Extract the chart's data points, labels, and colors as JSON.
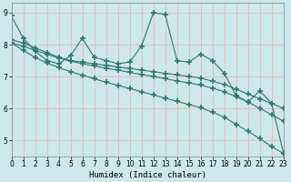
{
  "title": "",
  "xlabel": "Humidex (Indice chaleur)",
  "bg_color": "#cce8e8",
  "line_color": "#2d7a6b",
  "grid_color": "#e8b8b8",
  "x_data": [
    0,
    1,
    2,
    3,
    4,
    5,
    6,
    7,
    8,
    9,
    10,
    11,
    12,
    13,
    14,
    15,
    16,
    17,
    18,
    19,
    20,
    21,
    22,
    23
  ],
  "line1_y": [
    8.9,
    8.2,
    7.8,
    7.5,
    7.4,
    7.65,
    8.2,
    7.6,
    7.5,
    7.4,
    7.45,
    7.95,
    9.0,
    8.95,
    7.5,
    7.45,
    7.7,
    7.5,
    7.1,
    6.4,
    6.2,
    6.55,
    6.15,
    4.6
  ],
  "line2_y": [
    8.15,
    8.05,
    7.9,
    7.75,
    7.6,
    7.5,
    7.45,
    7.4,
    7.35,
    7.3,
    7.25,
    7.2,
    7.15,
    7.1,
    7.05,
    7.0,
    6.95,
    6.85,
    6.75,
    6.6,
    6.45,
    6.3,
    6.15,
    6.0
  ],
  "line3_y": [
    8.05,
    7.95,
    7.82,
    7.7,
    7.58,
    7.48,
    7.4,
    7.33,
    7.26,
    7.2,
    7.13,
    7.06,
    7.0,
    6.93,
    6.86,
    6.8,
    6.73,
    6.63,
    6.52,
    6.36,
    6.2,
    6.0,
    5.8,
    5.6
  ],
  "line4_y": [
    8.05,
    7.82,
    7.6,
    7.42,
    7.28,
    7.15,
    7.04,
    6.93,
    6.82,
    6.72,
    6.62,
    6.52,
    6.42,
    6.32,
    6.22,
    6.12,
    6.02,
    5.88,
    5.72,
    5.5,
    5.28,
    5.05,
    4.8,
    4.58
  ],
  "xlim": [
    0,
    23
  ],
  "ylim": [
    4.5,
    9.3
  ],
  "yticks": [
    5,
    6,
    7,
    8,
    9
  ],
  "ytick_labels": [
    "5",
    "6",
    "7",
    "8",
    "9"
  ],
  "xticks": [
    0,
    1,
    2,
    3,
    4,
    5,
    6,
    7,
    8,
    9,
    10,
    11,
    12,
    13,
    14,
    15,
    16,
    17,
    18,
    19,
    20,
    21,
    22,
    23
  ],
  "tick_fontsize": 5.5,
  "xlabel_fontsize": 6.5,
  "spine_color": "#888888"
}
